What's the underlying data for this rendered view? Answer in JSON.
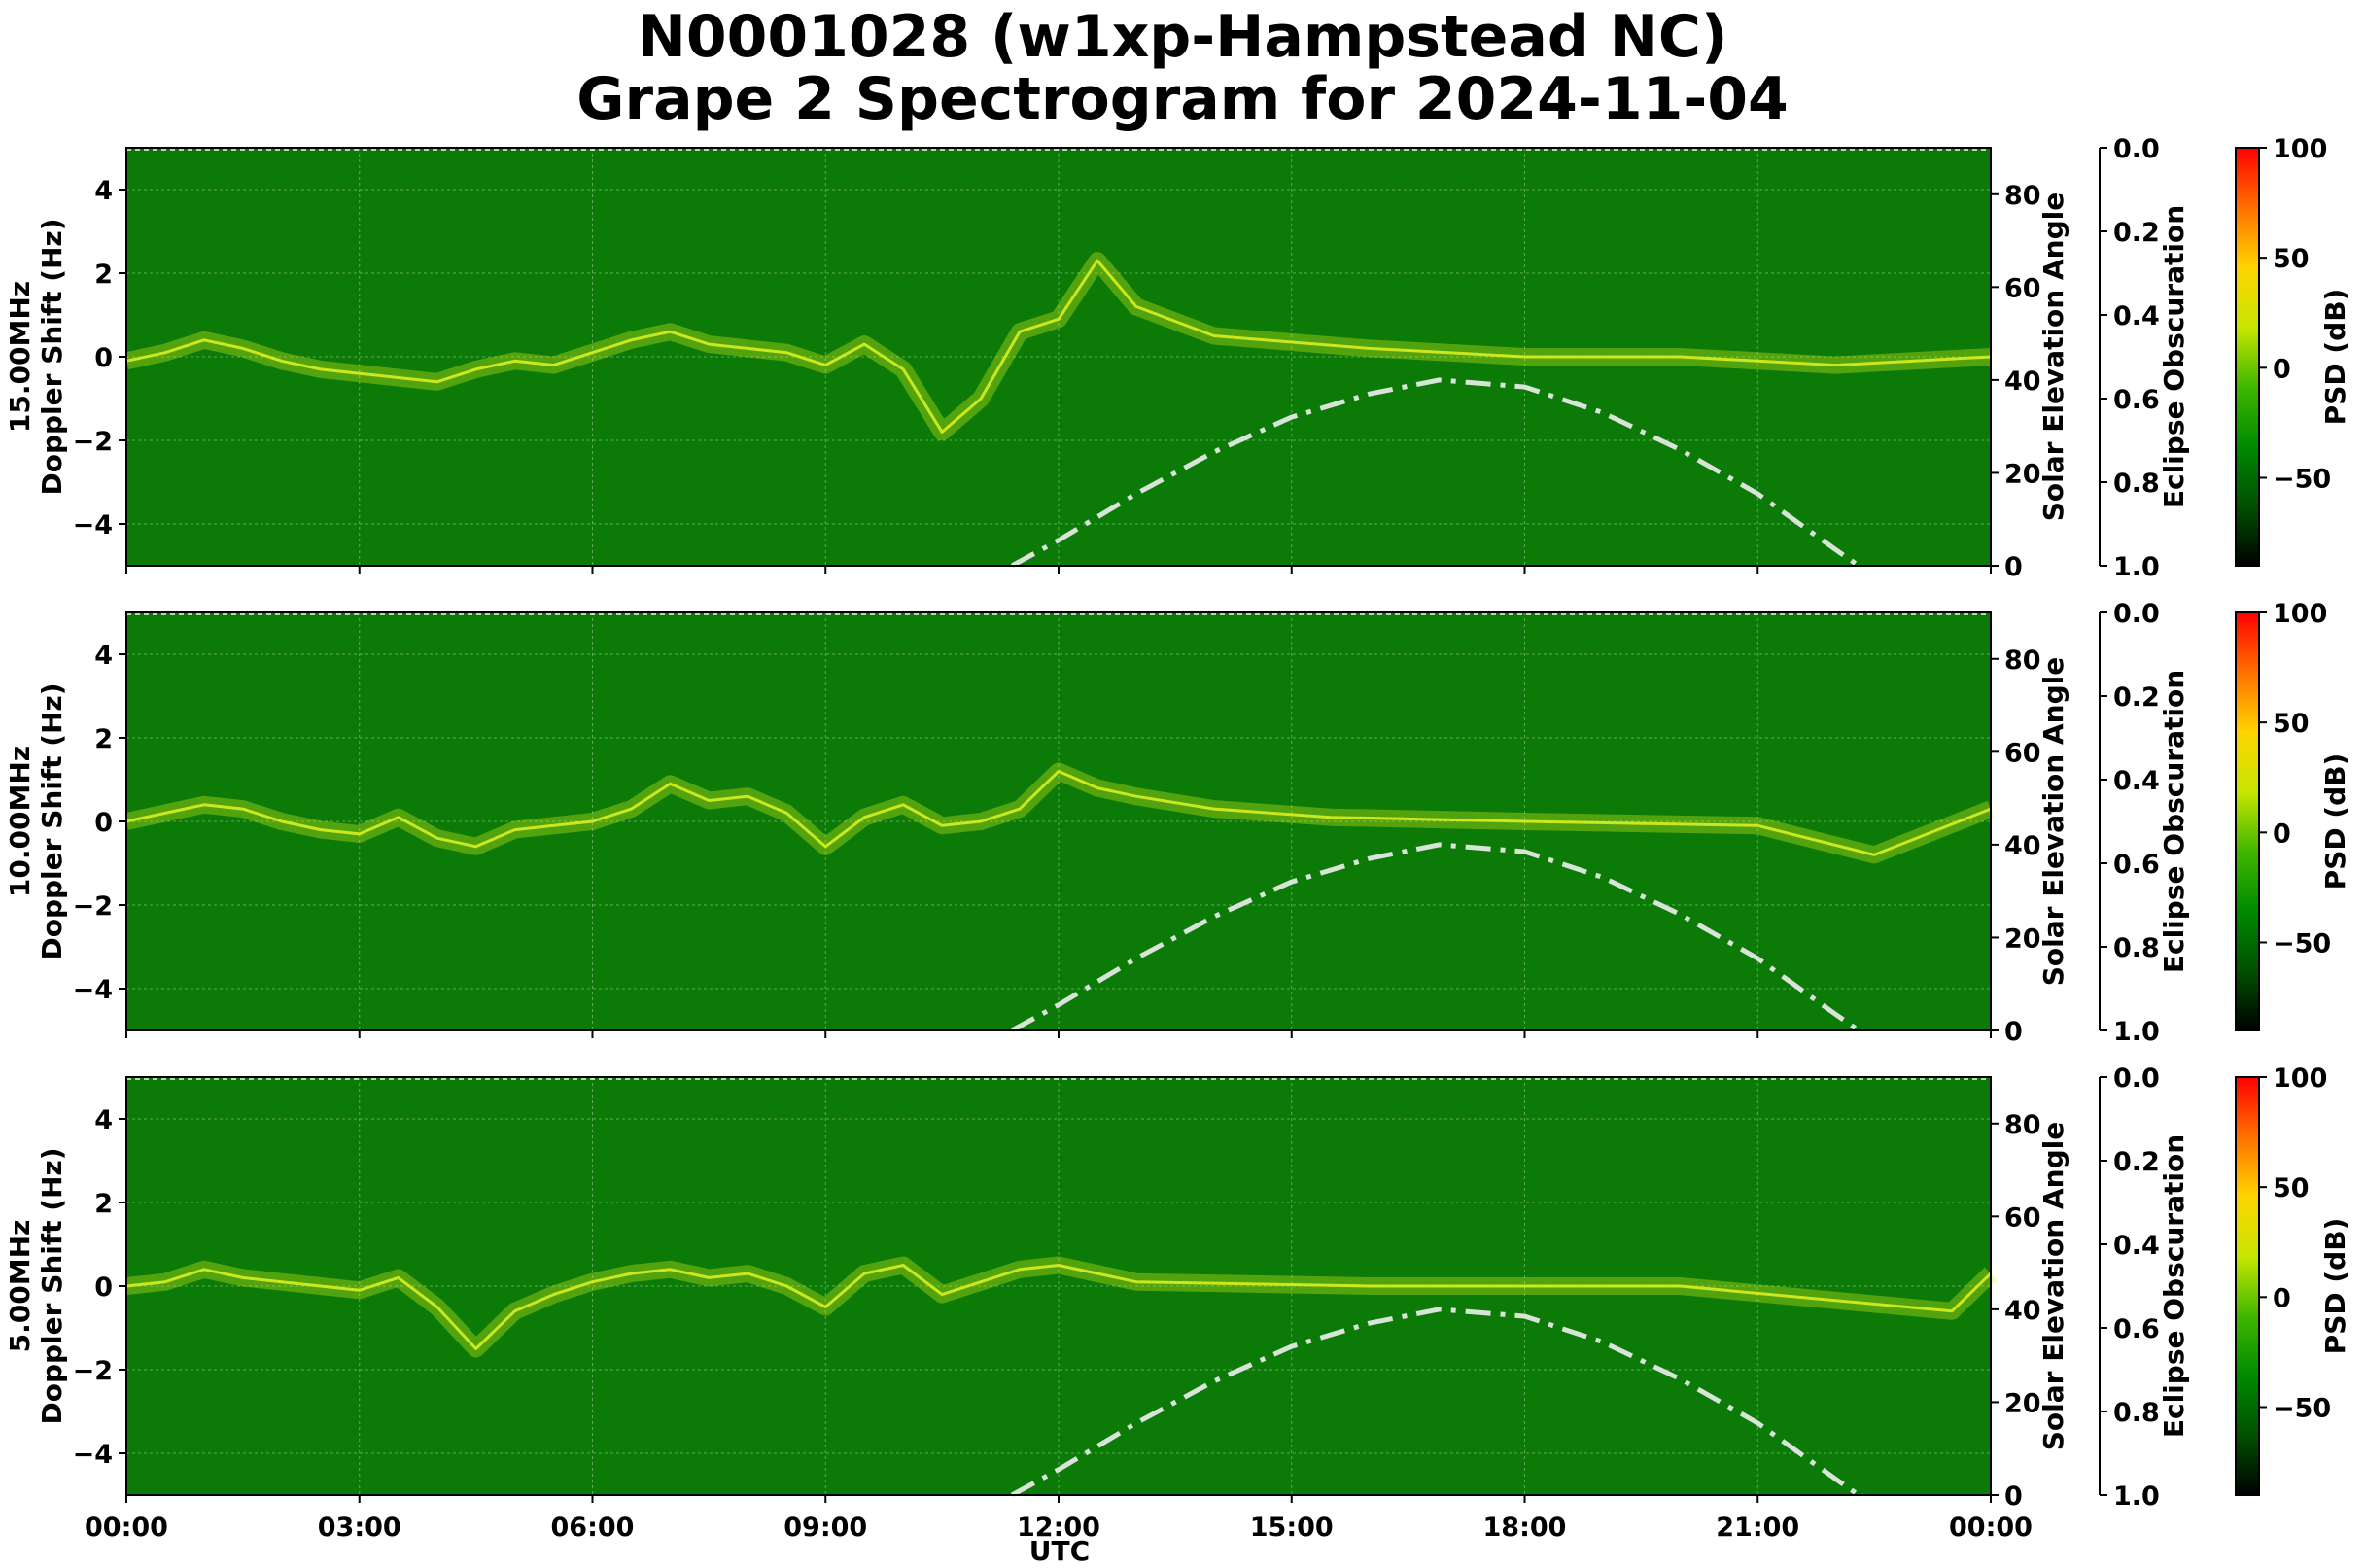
{
  "title": {
    "line1": "N0001028 (w1xp-Hampstead NC)",
    "line2": "Grape 2 Spectrogram for 2024-11-04"
  },
  "chart_data": {
    "type": "heatmap",
    "xlabel": "UTC",
    "x_ticks": [
      "00:00",
      "03:00",
      "06:00",
      "09:00",
      "12:00",
      "15:00",
      "18:00",
      "21:00",
      "00:00"
    ],
    "xlim_hours": [
      0,
      24
    ],
    "y_left_label": "Doppler Shift (Hz)",
    "ylim_left": [
      -5,
      5
    ],
    "y_left_ticks": [
      4,
      2,
      0,
      -2,
      -4
    ],
    "y_right_label": "Solar Elevation Angle",
    "ylim_right": [
      0,
      90
    ],
    "y_right_ticks": [
      0,
      20,
      40,
      60,
      80
    ],
    "eclipse_label": "Eclipse Obscuration",
    "eclipse_ticks": [
      "0.0",
      "0.2",
      "0.4",
      "0.6",
      "0.8",
      "1.0"
    ],
    "colorbar_label": "PSD (dB)",
    "colorbar_ticks": [
      100,
      50,
      0,
      -50
    ],
    "colorbar_range": [
      -90,
      100
    ],
    "colors": {
      "background": "#0b7a06",
      "signal": "#d8f020",
      "elevation_curve": "#d8e4d8",
      "colorbar": [
        "#000000",
        "#005000",
        "#008a00",
        "#3fb800",
        "#c8e600",
        "#ffd400",
        "#ff7000",
        "#ff0000"
      ]
    },
    "solar_elevation": {
      "hours": [
        11.4,
        12.0,
        13.0,
        14.0,
        15.0,
        16.0,
        16.9,
        18.0,
        19.0,
        20.0,
        21.0,
        22.0,
        22.3
      ],
      "degrees": [
        0,
        5.5,
        15.5,
        24.5,
        32,
        37,
        40,
        38.5,
        33,
        25,
        15.5,
        3.5,
        0
      ]
    },
    "panels": [
      {
        "label": "15.00MHz",
        "doppler_trace": {
          "hours": [
            0,
            0.5,
            1.0,
            1.5,
            2.0,
            2.5,
            3.0,
            3.5,
            4.0,
            4.5,
            5.0,
            5.5,
            6.0,
            6.5,
            7.0,
            7.5,
            8.0,
            8.5,
            9.0,
            9.5,
            10.0,
            10.5,
            11.0,
            11.5,
            12.0,
            12.5,
            13.0,
            14.0,
            16.0,
            18.0,
            20.0,
            22.0,
            24.0
          ],
          "hz": [
            -0.1,
            0.1,
            0.4,
            0.2,
            -0.1,
            -0.3,
            -0.4,
            -0.5,
            -0.6,
            -0.3,
            -0.1,
            -0.2,
            0.1,
            0.4,
            0.6,
            0.3,
            0.2,
            0.1,
            -0.2,
            0.3,
            -0.3,
            -1.8,
            -1.0,
            0.6,
            0.9,
            2.3,
            1.2,
            0.5,
            0.2,
            0.0,
            0.0,
            -0.2,
            0.0
          ]
        }
      },
      {
        "label": "10.00MHz",
        "doppler_trace": {
          "hours": [
            0,
            0.5,
            1.0,
            1.5,
            2.0,
            2.5,
            3.0,
            3.5,
            4.0,
            4.5,
            5.0,
            5.5,
            6.0,
            6.5,
            7.0,
            7.5,
            8.0,
            8.5,
            9.0,
            9.5,
            10.0,
            10.5,
            11.0,
            11.5,
            12.0,
            12.5,
            13.0,
            14.0,
            15.5,
            18.0,
            21.0,
            22.5,
            24.0
          ],
          "hz": [
            0.0,
            0.2,
            0.4,
            0.3,
            0.0,
            -0.2,
            -0.3,
            0.1,
            -0.4,
            -0.6,
            -0.2,
            -0.1,
            0.0,
            0.3,
            0.9,
            0.5,
            0.6,
            0.2,
            -0.6,
            0.1,
            0.4,
            -0.1,
            0.0,
            0.3,
            1.2,
            0.8,
            0.6,
            0.3,
            0.1,
            0.0,
            -0.1,
            -0.8,
            0.3
          ]
        }
      },
      {
        "label": "5.00MHz",
        "doppler_trace": {
          "hours": [
            0,
            0.5,
            1.0,
            1.5,
            2.0,
            2.5,
            3.0,
            3.5,
            4.0,
            4.5,
            5.0,
            5.5,
            6.0,
            6.5,
            7.0,
            7.5,
            8.0,
            8.5,
            9.0,
            9.5,
            10.0,
            10.5,
            11.0,
            11.5,
            12.0,
            13.0,
            16.0,
            20.0,
            23.5,
            24.0
          ],
          "hz": [
            0.0,
            0.1,
            0.4,
            0.2,
            0.1,
            0.0,
            -0.1,
            0.2,
            -0.5,
            -1.5,
            -0.6,
            -0.2,
            0.1,
            0.3,
            0.4,
            0.2,
            0.3,
            0.0,
            -0.5,
            0.3,
            0.5,
            -0.2,
            0.1,
            0.4,
            0.5,
            0.1,
            0.0,
            0.0,
            -0.6,
            0.3
          ]
        }
      }
    ]
  }
}
